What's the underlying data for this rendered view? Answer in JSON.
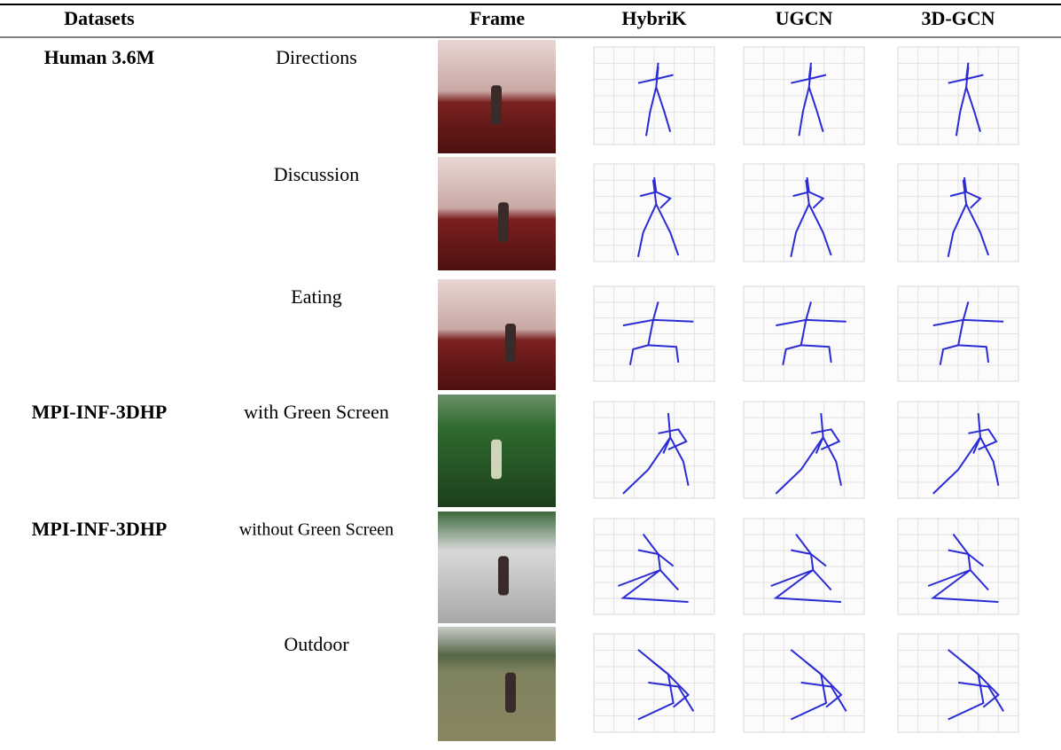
{
  "table": {
    "header": [
      "Datasets",
      "Frame",
      "HybriK",
      "UGCN",
      "3D-GCN"
    ],
    "rows": [
      {
        "dataset": "Human 3.6M",
        "action": "Directions"
      },
      {
        "action": "Discussion"
      },
      {
        "action": "Eating"
      },
      {
        "dataset": "MPI-INF-3DHP",
        "action": "with Green Screen"
      },
      {
        "dataset": "MPI-INF-3DHP",
        "action": "without Green Screen"
      },
      {
        "action": "Outdoor"
      }
    ]
  }
}
